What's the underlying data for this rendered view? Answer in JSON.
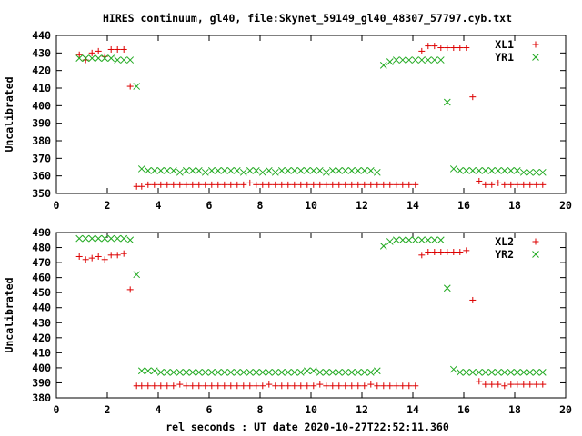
{
  "page_title": "HIRES continuum, gl40, file:Skynet_59149_gl40_48307_57797.cyb.txt",
  "colors": {
    "red": "#dd0000",
    "green": "#22aa22",
    "axis": "#000000"
  },
  "chart_data": [
    {
      "type": "scatter",
      "title": "HIRES continuum, gl40, file:Skynet_59149_gl40_48307_57797.cyb.txt",
      "xlabel": "",
      "ylabel": "Uncalibrated",
      "xlim": [
        0,
        20
      ],
      "ylim": [
        350,
        440
      ],
      "xticks": [
        0,
        2,
        4,
        6,
        8,
        10,
        12,
        14,
        16,
        18,
        20
      ],
      "yticks": [
        350,
        360,
        370,
        380,
        390,
        400,
        410,
        420,
        430,
        440
      ],
      "grid": false,
      "legend": "top-right",
      "series": [
        {
          "name": "XL1",
          "marker": "plus",
          "color": "#dd0000",
          "x": [
            0.9,
            1.15,
            1.4,
            1.65,
            1.9,
            2.15,
            2.4,
            2.65,
            2.9,
            3.15,
            3.35,
            3.6,
            3.85,
            4.1,
            4.35,
            4.6,
            4.85,
            5.1,
            5.35,
            5.6,
            5.85,
            6.1,
            6.35,
            6.6,
            6.85,
            7.1,
            7.35,
            7.6,
            7.85,
            8.1,
            8.35,
            8.6,
            8.85,
            9.1,
            9.35,
            9.6,
            9.85,
            10.1,
            10.35,
            10.6,
            10.85,
            11.1,
            11.35,
            11.6,
            11.85,
            12.1,
            12.35,
            12.6,
            12.85,
            13.1,
            13.35,
            13.6,
            13.85,
            14.1,
            14.35,
            14.6,
            14.85,
            15.1,
            15.35,
            15.6,
            15.85,
            16.1,
            16.35,
            16.6,
            16.85,
            17.1,
            17.35,
            17.6,
            17.85,
            18.1,
            18.35,
            18.6,
            18.85,
            19.1
          ],
          "y": [
            429,
            426,
            430,
            431,
            428,
            432,
            432,
            432,
            411,
            354,
            354,
            355,
            355,
            355,
            355,
            355,
            355,
            355,
            355,
            355,
            355,
            355,
            355,
            355,
            355,
            355,
            355,
            356,
            355,
            355,
            355,
            355,
            355,
            355,
            355,
            355,
            355,
            355,
            355,
            355,
            355,
            355,
            355,
            355,
            355,
            355,
            355,
            355,
            355,
            355,
            355,
            355,
            355,
            355,
            431,
            434,
            434,
            433,
            433,
            433,
            433,
            433,
            405,
            357,
            355,
            355,
            356,
            355,
            355,
            355,
            355,
            355,
            355,
            355
          ],
          "y_note": "see series values"
        },
        {
          "name": "YR1",
          "marker": "cross",
          "color": "#22aa22",
          "x": [
            0.9,
            1.15,
            1.4,
            1.65,
            1.9,
            2.15,
            2.4,
            2.65,
            2.9,
            3.15,
            3.35,
            3.6,
            3.85,
            4.1,
            4.35,
            4.6,
            4.85,
            5.1,
            5.35,
            5.6,
            5.85,
            6.1,
            6.35,
            6.6,
            6.85,
            7.1,
            7.35,
            7.6,
            7.85,
            8.1,
            8.35,
            8.6,
            8.85,
            9.1,
            9.35,
            9.6,
            9.85,
            10.1,
            10.35,
            10.6,
            10.85,
            11.1,
            11.35,
            11.6,
            11.85,
            12.1,
            12.35,
            12.6,
            12.85,
            13.1,
            13.35,
            13.6,
            13.85,
            14.1,
            14.35,
            14.6,
            14.85,
            15.1,
            15.35,
            15.6,
            15.85,
            16.1,
            16.35,
            16.6,
            16.85,
            17.1,
            17.35,
            17.6,
            17.85,
            18.1,
            18.35,
            18.6,
            18.85,
            19.1
          ],
          "y": [
            427,
            427,
            427,
            427,
            427,
            427,
            426,
            426,
            426,
            411,
            364,
            363,
            363,
            363,
            363,
            363,
            362,
            363,
            363,
            363,
            362,
            363,
            363,
            363,
            363,
            363,
            362,
            363,
            363,
            362,
            363,
            362,
            363,
            363,
            363,
            363,
            363,
            363,
            363,
            362,
            363,
            363,
            363,
            363,
            363,
            363,
            363,
            362,
            423,
            425,
            426,
            426,
            426,
            426,
            426,
            426,
            426,
            426,
            402,
            364,
            363,
            363,
            363,
            363,
            363,
            363,
            363,
            363,
            363,
            363,
            362,
            362,
            362,
            362
          ]
        }
      ]
    },
    {
      "type": "scatter",
      "title": "",
      "xlabel": "rel seconds : UT date 2020-10-27T22:52:11.360",
      "ylabel": "Uncalibrated",
      "xlim": [
        0,
        20
      ],
      "ylim": [
        380,
        490
      ],
      "xticks": [
        0,
        2,
        4,
        6,
        8,
        10,
        12,
        14,
        16,
        18,
        20
      ],
      "yticks": [
        380,
        390,
        400,
        410,
        420,
        430,
        440,
        450,
        460,
        470,
        480,
        490
      ],
      "grid": false,
      "legend": "top-right",
      "series": [
        {
          "name": "XL2",
          "marker": "plus",
          "color": "#dd0000",
          "x": [
            0.9,
            1.15,
            1.4,
            1.65,
            1.9,
            2.15,
            2.4,
            2.65,
            2.9,
            3.15,
            3.35,
            3.6,
            3.85,
            4.1,
            4.35,
            4.6,
            4.85,
            5.1,
            5.35,
            5.6,
            5.85,
            6.1,
            6.35,
            6.6,
            6.85,
            7.1,
            7.35,
            7.6,
            7.85,
            8.1,
            8.35,
            8.6,
            8.85,
            9.1,
            9.35,
            9.6,
            9.85,
            10.1,
            10.35,
            10.6,
            10.85,
            11.1,
            11.35,
            11.6,
            11.85,
            12.1,
            12.35,
            12.6,
            12.85,
            13.1,
            13.35,
            13.6,
            13.85,
            14.1,
            14.35,
            14.6,
            14.85,
            15.1,
            15.35,
            15.6,
            15.85,
            16.1,
            16.35,
            16.6,
            16.85,
            17.1,
            17.35,
            17.6,
            17.85,
            18.1,
            18.35,
            18.6,
            18.85,
            19.1
          ],
          "y": [
            474,
            472,
            473,
            474,
            472,
            475,
            475,
            476,
            452,
            388,
            388,
            388,
            388,
            388,
            388,
            388,
            389,
            388,
            388,
            388,
            388,
            388,
            388,
            388,
            388,
            388,
            388,
            388,
            388,
            388,
            389,
            388,
            388,
            388,
            388,
            388,
            388,
            388,
            389,
            388,
            388,
            388,
            388,
            388,
            388,
            388,
            389,
            388,
            388,
            388,
            388,
            388,
            388,
            388,
            475,
            477,
            477,
            477,
            477,
            477,
            477,
            478,
            445,
            391,
            389,
            389,
            389,
            388,
            389,
            389,
            389,
            389,
            389,
            389
          ]
        },
        {
          "name": "YR2",
          "marker": "cross",
          "color": "#22aa22",
          "x": [
            0.9,
            1.15,
            1.4,
            1.65,
            1.9,
            2.15,
            2.4,
            2.65,
            2.9,
            3.15,
            3.35,
            3.6,
            3.85,
            4.1,
            4.35,
            4.6,
            4.85,
            5.1,
            5.35,
            5.6,
            5.85,
            6.1,
            6.35,
            6.6,
            6.85,
            7.1,
            7.35,
            7.6,
            7.85,
            8.1,
            8.35,
            8.6,
            8.85,
            9.1,
            9.35,
            9.6,
            9.85,
            10.1,
            10.35,
            10.6,
            10.85,
            11.1,
            11.35,
            11.6,
            11.85,
            12.1,
            12.35,
            12.6,
            12.85,
            13.1,
            13.35,
            13.6,
            13.85,
            14.1,
            14.35,
            14.6,
            14.85,
            15.1,
            15.35,
            15.6,
            15.85,
            16.1,
            16.35,
            16.6,
            16.85,
            17.1,
            17.35,
            17.6,
            17.85,
            18.1,
            18.35,
            18.6,
            18.85,
            19.1
          ],
          "y": [
            486,
            486,
            486,
            486,
            486,
            486,
            486,
            486,
            485,
            462,
            398,
            398,
            398,
            397,
            397,
            397,
            397,
            397,
            397,
            397,
            397,
            397,
            397,
            397,
            397,
            397,
            397,
            397,
            397,
            397,
            397,
            397,
            397,
            397,
            397,
            397,
            398,
            398,
            397,
            397,
            397,
            397,
            397,
            397,
            397,
            397,
            397,
            398,
            481,
            484,
            485,
            485,
            485,
            485,
            485,
            485,
            485,
            485,
            453,
            399,
            397,
            397,
            397,
            397,
            397,
            397,
            397,
            397,
            397,
            397,
            397,
            397,
            397,
            397
          ]
        }
      ]
    }
  ]
}
